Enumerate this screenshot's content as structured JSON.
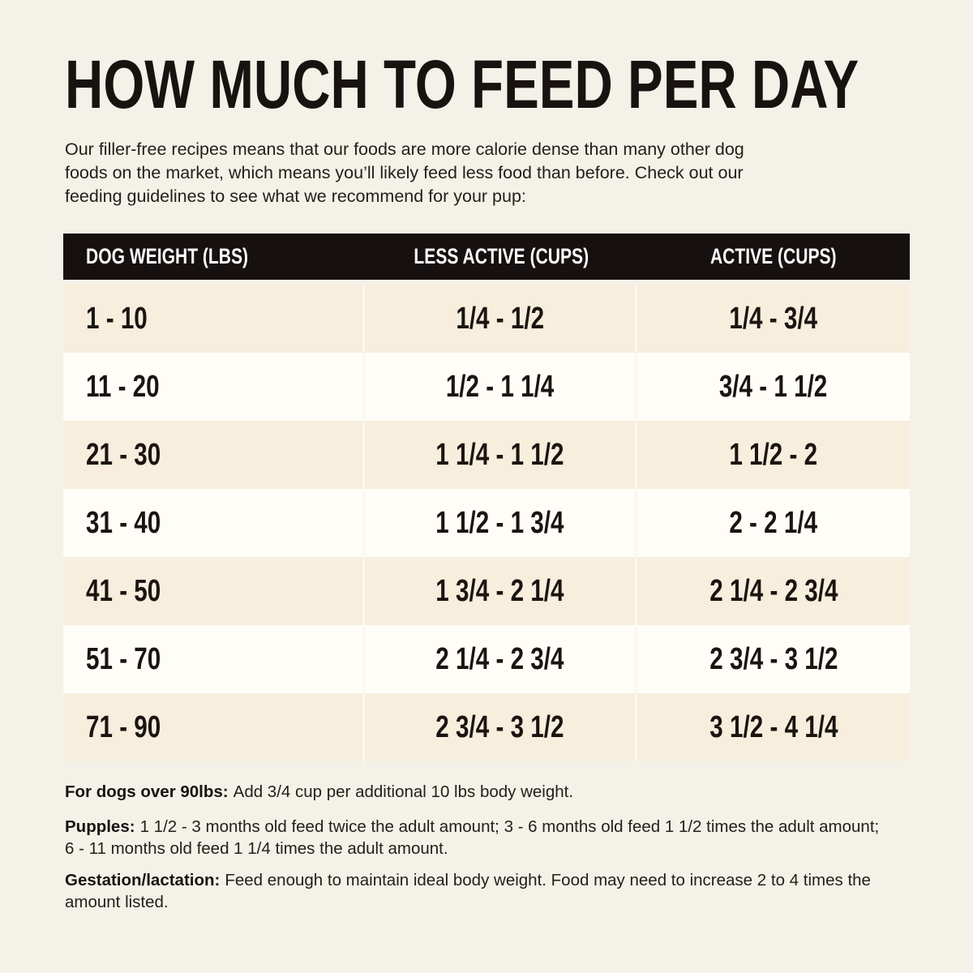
{
  "page_bg": "#f4f1e9",
  "accent_colors": {
    "header_bar": "#161110",
    "row_beige": "#f7eedd",
    "row_white": "#fffdf8",
    "text_dark": "#181310"
  },
  "intro": {
    "lines": [
      "Our filler-free recipes means that our foods are more calorie dense than many other dog",
      "foods on the market, which means you’ll likely feed less food than before. Check out our",
      "feeding guidelines to see what we recommend for your pup:"
    ]
  },
  "chart_data": {
    "type": "table",
    "title": "HOW MUCH TO FEED PER DAY",
    "columns": [
      "DOG WEIGHT (LBS)",
      "LESS ACTIVE (CUPS)",
      "ACTIVE (CUPS)"
    ],
    "rows": [
      [
        "1 - 10",
        "1/4 - 1/2",
        "1/4 - 3/4"
      ],
      [
        "11 - 20",
        "1/2 - 1 1/4",
        "3/4 - 1 1/2"
      ],
      [
        "21 - 30",
        "1 1/4 - 1 1/2",
        "1 1/2 - 2"
      ],
      [
        "31 - 40",
        "1 1/2 - 1 3/4",
        "2 - 2 1/4"
      ],
      [
        "41 - 50",
        "1 3/4 - 2 1/4",
        "2 1/4 - 2 3/4"
      ],
      [
        "51 - 70",
        "2 1/4 - 2 3/4",
        "2 3/4 - 3 1/2"
      ],
      [
        "71 - 90",
        "2 3/4 - 3 1/2",
        "3 1/2 - 4 1/4"
      ]
    ],
    "layout_hints": {
      "header_text_color": "#fdfcfa",
      "alternating_rows": [
        "beige",
        "white"
      ],
      "first_column_align": "left",
      "other_columns_align": "center"
    }
  },
  "notes": [
    {
      "lead": "For dogs over 90lbs:",
      "text": "Add 3/4 cup per additional 10 lbs body weight."
    },
    {
      "lead": "Pupples:",
      "text": "1 1/2 - 3 months old feed twice the adult amount; 3 - 6 months old feed 1 1/2 times the adult amount; 6 - 11 months old feed 1 1/4 times the adult amount."
    },
    {
      "lead": "Gestation/lactation:",
      "text": "Feed enough to maintain ideal body weight. Food may need to increase 2 to 4 times the amount listed."
    }
  ]
}
